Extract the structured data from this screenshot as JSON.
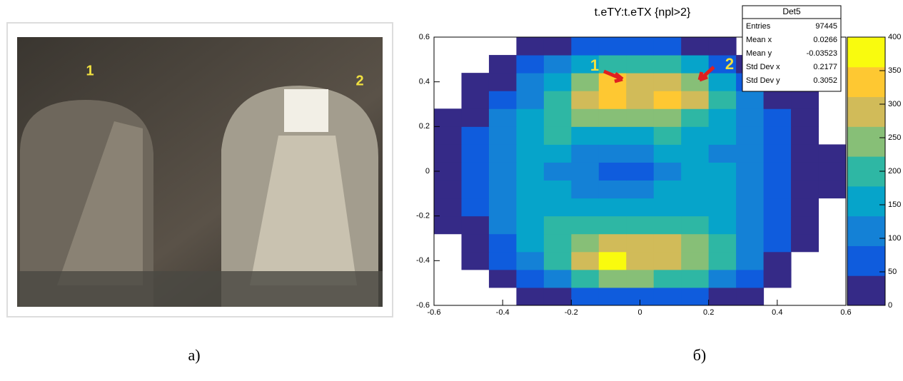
{
  "photo": {
    "labels": [
      "1",
      "2"
    ]
  },
  "chart_data": {
    "type": "heatmap",
    "title": "t.eTY:t.eTX {npl>2}",
    "xbins": [
      -0.6,
      -0.52,
      -0.44,
      -0.36,
      -0.28,
      -0.2,
      -0.12,
      -0.04,
      0.04,
      0.12,
      0.2,
      0.28,
      0.36,
      0.44,
      0.52,
      0.6
    ],
    "ybins": [
      -0.6,
      -0.52,
      -0.44,
      -0.36,
      -0.28,
      -0.2,
      -0.12,
      -0.04,
      0.04,
      0.12,
      0.2,
      0.28,
      0.36,
      0.44,
      0.52,
      0.6
    ],
    "values": [
      [
        0,
        0,
        0,
        10,
        30,
        50,
        60,
        60,
        60,
        50,
        30,
        10,
        0,
        0,
        0
      ],
      [
        0,
        0,
        20,
        60,
        120,
        200,
        260,
        250,
        220,
        180,
        120,
        50,
        10,
        0,
        0
      ],
      [
        0,
        10,
        50,
        120,
        200,
        280,
        380,
        300,
        280,
        240,
        180,
        90,
        30,
        0,
        0
      ],
      [
        0,
        20,
        70,
        140,
        210,
        260,
        300,
        280,
        270,
        240,
        190,
        110,
        50,
        10,
        0
      ],
      [
        10,
        40,
        90,
        140,
        180,
        200,
        210,
        200,
        200,
        190,
        170,
        120,
        70,
        20,
        0
      ],
      [
        20,
        50,
        100,
        140,
        150,
        150,
        140,
        150,
        160,
        170,
        160,
        130,
        80,
        30,
        0
      ],
      [
        30,
        60,
        110,
        140,
        140,
        120,
        100,
        120,
        150,
        160,
        150,
        120,
        80,
        30,
        10
      ],
      [
        30,
        60,
        110,
        140,
        130,
        100,
        60,
        80,
        130,
        150,
        140,
        110,
        80,
        30,
        10
      ],
      [
        30,
        60,
        110,
        150,
        150,
        120,
        100,
        120,
        140,
        140,
        130,
        110,
        80,
        30,
        10
      ],
      [
        20,
        50,
        100,
        160,
        180,
        170,
        160,
        170,
        180,
        160,
        140,
        110,
        70,
        30,
        0
      ],
      [
        10,
        40,
        90,
        150,
        210,
        230,
        240,
        240,
        230,
        200,
        160,
        100,
        60,
        20,
        0
      ],
      [
        0,
        20,
        60,
        120,
        200,
        280,
        320,
        300,
        320,
        280,
        180,
        90,
        40,
        10,
        0
      ],
      [
        0,
        10,
        40,
        90,
        160,
        260,
        330,
        280,
        300,
        240,
        140,
        60,
        20,
        0,
        0
      ],
      [
        0,
        0,
        20,
        60,
        110,
        170,
        200,
        190,
        180,
        150,
        80,
        30,
        0,
        0,
        0
      ],
      [
        0,
        0,
        0,
        10,
        40,
        60,
        70,
        70,
        60,
        40,
        20,
        0,
        0,
        0,
        0
      ]
    ],
    "palette": [
      "#352a87",
      "#0f5cdd",
      "#1481d6",
      "#06a4ca",
      "#2eb7a4",
      "#87bf77",
      "#d1bb59",
      "#fec832",
      "#f9fb0e"
    ],
    "xlim": [
      -0.6,
      0.6
    ],
    "ylim": [
      -0.6,
      0.6
    ],
    "xticks": [
      -0.6,
      -0.4,
      -0.2,
      0,
      0.2,
      0.4,
      0.6
    ],
    "yticks": [
      -0.6,
      -0.4,
      -0.2,
      0,
      0.2,
      0.4,
      0.6
    ],
    "zlim": [
      0,
      400
    ],
    "zticks": [
      0,
      50,
      100,
      150,
      200,
      250,
      300,
      350,
      400
    ],
    "stats": {
      "name": "Det5",
      "rows": [
        {
          "label": "Entries",
          "value": 97445
        },
        {
          "label": "Mean x",
          "value": 0.0266
        },
        {
          "label": "Mean y",
          "value": -0.03523
        },
        {
          "label": "Std Dev x",
          "value": 0.2177
        },
        {
          "label": "Std Dev y",
          "value": 0.3052
        }
      ]
    },
    "annotations": [
      "1",
      "2"
    ]
  },
  "captions": [
    "a)",
    "б)"
  ]
}
